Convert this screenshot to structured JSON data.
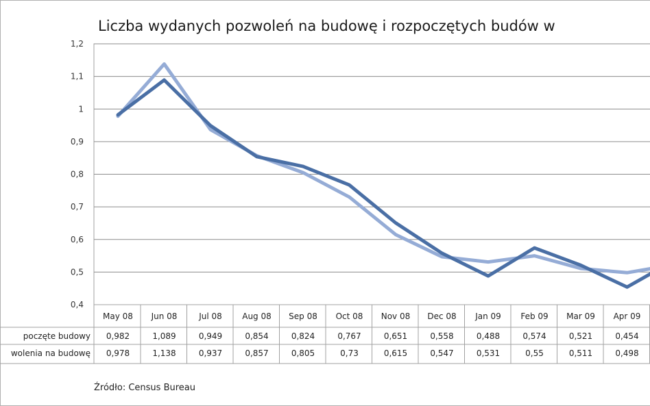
{
  "chart_data": {
    "type": "line",
    "title": "Liczba wydanych pozwoleń na budowę i rozpoczętych budów w",
    "categories": [
      "May 08",
      "Jun 08",
      "Jul 08",
      "Aug 08",
      "Sep 08",
      "Oct 08",
      "Nov 08",
      "Dec 08",
      "Jan 09",
      "Feb 09",
      "Mar 09",
      "Apr 09"
    ],
    "ylim": [
      0.4,
      1.2
    ],
    "yticks": [
      "1,2",
      "1,1",
      "1",
      "0,9",
      "0,8",
      "0,7",
      "0,6",
      "0,5",
      "0,4"
    ],
    "grid": true,
    "series": [
      {
        "name": "Rozpoczęte budowy",
        "label_visible": "poczęte budowy",
        "color": "#4a6fa5",
        "values": [
          0.982,
          1.089,
          0.949,
          0.854,
          0.824,
          0.767,
          0.651,
          0.558,
          0.488,
          0.574,
          0.521,
          0.454
        ],
        "value_labels": [
          "0,982",
          "1,089",
          "0,949",
          "0,854",
          "0,824",
          "0,767",
          "0,651",
          "0,558",
          "0,488",
          "0,574",
          "0,521",
          "0,454"
        ]
      },
      {
        "name": "Pozwolenia na budowę",
        "label_visible": "wolenia na budowę",
        "color": "#95acd6",
        "values": [
          0.978,
          1.138,
          0.937,
          0.857,
          0.805,
          0.73,
          0.615,
          0.547,
          0.531,
          0.55,
          0.511,
          0.498
        ],
        "value_labels": [
          "0,978",
          "1,138",
          "0,937",
          "0,857",
          "0,805",
          "0,73",
          "0,615",
          "0,547",
          "0,531",
          "0,55",
          "0,511",
          "0,498"
        ]
      }
    ],
    "source": "Źródło:  Census Bureau"
  },
  "colors": {
    "grid": "#8c8c8c",
    "frame": "#a0a0a0",
    "series1": "#4a6fa5",
    "series2": "#95acd6"
  }
}
